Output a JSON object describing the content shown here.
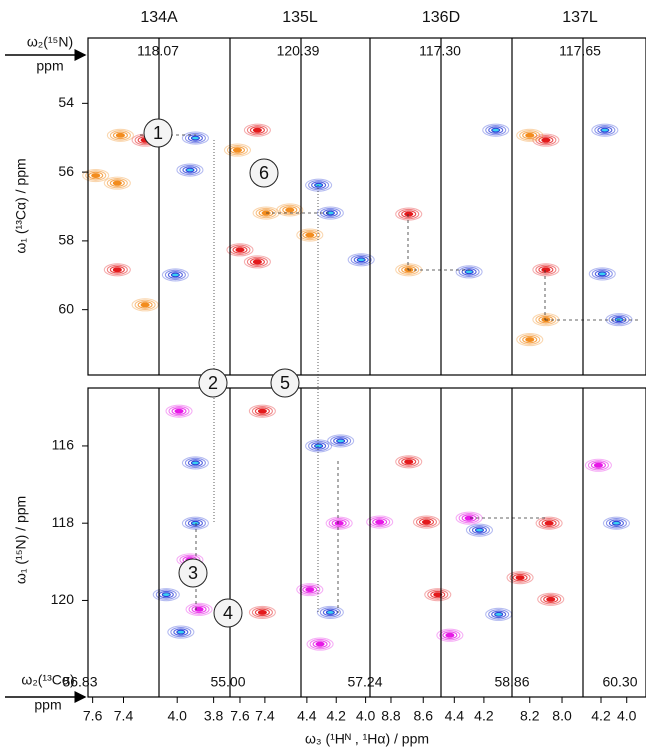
{
  "column_titles": [
    "134A",
    "135L",
    "136D",
    "137L"
  ],
  "top_left_label": "ω₂(¹⁵N)",
  "top_left_unit": "ppm",
  "strip_n15": [
    "118.07",
    "120.39",
    "117.30",
    "117.65"
  ],
  "bottom_left_label": "ω₂(¹³Cα)",
  "bottom_left_unit": "ppm",
  "strip_ca": [
    "56.83",
    "55.00",
    "57.24",
    "58.86",
    "60.30"
  ],
  "x_axis_title": "ω₃ (¹Hᴺ , ¹Hα) / ppm",
  "top_panel": {
    "y_title": "ω₁ (¹³Cα) / ppm",
    "ylim": [
      52.1,
      61.9
    ],
    "yticks": [
      54,
      56,
      58,
      60
    ]
  },
  "bottom_panel": {
    "y_title": "ω₁ (¹⁵N) / ppm",
    "ylim": [
      114.5,
      122.5
    ],
    "yticks": [
      116,
      118,
      120
    ]
  },
  "markers": [
    "1",
    "6",
    "2",
    "5",
    "3",
    "4"
  ],
  "subpanels": [
    {
      "xlim": [
        7.63,
        7.17
      ],
      "xticks": [
        7.6,
        7.4
      ],
      "top_peaks": [
        {
          "x": 7.42,
          "y": 54.93,
          "color": "#f28c1e"
        },
        {
          "x": 7.26,
          "y": 55.07,
          "color": "#e31a1c"
        },
        {
          "x": 7.44,
          "y": 56.32,
          "color": "#f28c1e"
        },
        {
          "x": 7.58,
          "y": 56.1,
          "color": "#f28c1e"
        },
        {
          "x": 7.44,
          "y": 58.84,
          "color": "#e31a1c"
        },
        {
          "x": 7.26,
          "y": 59.86,
          "color": "#f28c1e"
        }
      ],
      "bottom_peaks": []
    },
    {
      "xlim": [
        4.1,
        3.71
      ],
      "xticks": [
        {
          "value": 4,
          "label": "4.0"
        },
        3.8
      ],
      "top_peaks": [
        {
          "x": 3.9,
          "y": 55.01,
          "color": "#2b3ed8"
        },
        {
          "x": 3.93,
          "y": 55.94,
          "color": "#2b3ed8"
        },
        {
          "x": 4.01,
          "y": 58.99,
          "color": "#2b3ed8"
        }
      ],
      "bottom_peaks": [
        {
          "x": 3.99,
          "y": 115.1,
          "color": "#e619e6"
        },
        {
          "x": 3.9,
          "y": 116.44,
          "color": "#2b3ed8"
        },
        {
          "x": 3.9,
          "y": 118.0,
          "color": "#2b3ed8"
        },
        {
          "x": 3.93,
          "y": 118.95,
          "color": "#e619e6"
        },
        {
          "x": 4.06,
          "y": 119.85,
          "color": "#2b3ed8"
        },
        {
          "x": 3.98,
          "y": 120.82,
          "color": "#2b3ed8"
        },
        {
          "x": 3.88,
          "y": 120.23,
          "color": "#e619e6"
        }
      ]
    },
    {
      "xlim": [
        7.68,
        7.11
      ],
      "xticks": [
        7.6,
        7.4
      ],
      "top_peaks": [
        {
          "x": 7.46,
          "y": 54.78,
          "color": "#e31a1c"
        },
        {
          "x": 7.62,
          "y": 55.36,
          "color": "#f28c1e"
        },
        {
          "x": 7.39,
          "y": 57.19,
          "color": "#f28c1e"
        },
        {
          "x": 7.46,
          "y": 58.61,
          "color": "#e31a1c"
        },
        {
          "x": 7.6,
          "y": 58.26,
          "color": "#e31a1c"
        },
        {
          "x": 7.2,
          "y": 57.1,
          "color": "#f28c1e"
        }
      ],
      "bottom_peaks": [
        {
          "x": 7.42,
          "y": 115.1,
          "color": "#e31a1c"
        },
        {
          "x": 7.42,
          "y": 120.31,
          "color": "#e31a1c"
        }
      ]
    },
    {
      "xlim": [
        4.44,
        3.97
      ],
      "xticks": [
        4.4,
        4.2,
        {
          "value": 4,
          "label": "4.0"
        }
      ],
      "top_peaks": [
        {
          "x": 4.32,
          "y": 56.38,
          "color": "#2b3ed8"
        },
        {
          "x": 4.24,
          "y": 57.19,
          "color": "#2b3ed8"
        },
        {
          "x": 4.03,
          "y": 58.55,
          "color": "#2b3ed8"
        },
        {
          "x": 4.38,
          "y": 57.83,
          "color": "#f28c1e"
        }
      ],
      "bottom_peaks": [
        {
          "x": 4.32,
          "y": 116.0,
          "color": "#2b3ed8"
        },
        {
          "x": 4.17,
          "y": 115.87,
          "color": "#2b3ed8"
        },
        {
          "x": 4.18,
          "y": 118.0,
          "color": "#e619e6"
        },
        {
          "x": 4.38,
          "y": 119.72,
          "color": "#e619e6"
        },
        {
          "x": 4.24,
          "y": 120.31,
          "color": "#2b3ed8"
        },
        {
          "x": 4.31,
          "y": 121.13,
          "color": "#e619e6"
        }
      ]
    },
    {
      "xlim": [
        8.93,
        8.49
      ],
      "xticks": [
        8.8,
        8.6
      ],
      "top_peaks": [
        {
          "x": 8.69,
          "y": 57.22,
          "color": "#e31a1c"
        },
        {
          "x": 8.69,
          "y": 58.84,
          "color": "#f28c1e"
        }
      ],
      "bottom_peaks": [
        {
          "x": 8.69,
          "y": 116.41,
          "color": "#e31a1c"
        },
        {
          "x": 8.58,
          "y": 117.97,
          "color": "#e31a1c"
        },
        {
          "x": 8.87,
          "y": 117.97,
          "color": "#e619e6"
        },
        {
          "x": 8.51,
          "y": 119.85,
          "color": "#e31a1c"
        }
      ]
    },
    {
      "xlim": [
        4.49,
        4.01
      ],
      "xticks": [
        4.4,
        4.2
      ],
      "top_peaks": [
        {
          "x": 4.3,
          "y": 58.9,
          "color": "#2b3ed8"
        },
        {
          "x": 4.12,
          "y": 54.78,
          "color": "#2b3ed8"
        }
      ],
      "bottom_peaks": [
        {
          "x": 4.23,
          "y": 118.18,
          "color": "#2b3ed8"
        },
        {
          "x": 4.3,
          "y": 117.87,
          "color": "#e619e6"
        },
        {
          "x": 4.1,
          "y": 120.36,
          "color": "#2b3ed8"
        },
        {
          "x": 4.43,
          "y": 120.9,
          "color": "#e619e6"
        }
      ]
    },
    {
      "xlim": [
        8.31,
        7.87
      ],
      "xticks": [
        8.2,
        {
          "value": 8,
          "label": "8.0"
        }
      ],
      "top_peaks": [
        {
          "x": 8.1,
          "y": 58.84,
          "color": "#e31a1c"
        },
        {
          "x": 8.1,
          "y": 60.29,
          "color": "#f28c1e"
        },
        {
          "x": 8.2,
          "y": 60.87,
          "color": "#f28c1e"
        },
        {
          "x": 8.1,
          "y": 55.07,
          "color": "#e31a1c"
        },
        {
          "x": 8.2,
          "y": 54.93,
          "color": "#f28c1e"
        }
      ],
      "bottom_peaks": [
        {
          "x": 8.08,
          "y": 118.0,
          "color": "#e31a1c"
        },
        {
          "x": 8.26,
          "y": 119.41,
          "color": "#e31a1c"
        },
        {
          "x": 8.07,
          "y": 119.97,
          "color": "#e31a1c"
        }
      ]
    },
    {
      "xlim": [
        4.34,
        3.85
      ],
      "xticks": [
        4.2,
        {
          "value": 4,
          "label": "4.0"
        }
      ],
      "top_peaks": [
        {
          "x": 4.19,
          "y": 58.96,
          "color": "#2b3ed8"
        },
        {
          "x": 4.06,
          "y": 60.29,
          "color": "#2b3ed8"
        },
        {
          "x": 4.17,
          "y": 54.78,
          "color": "#2b3ed8"
        }
      ],
      "bottom_peaks": [
        {
          "x": 4.08,
          "y": 118.0,
          "color": "#2b3ed8"
        },
        {
          "x": 4.22,
          "y": 116.5,
          "color": "#e619e6"
        }
      ]
    }
  ]
}
